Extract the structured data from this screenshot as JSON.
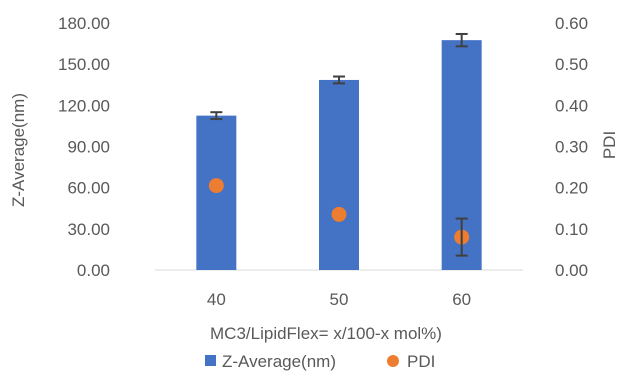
{
  "chart_data": {
    "type": "bar",
    "categories": [
      "40",
      "50",
      "60"
    ],
    "series": [
      {
        "name": "Z-Average(nm)",
        "type": "bar",
        "axis": "left",
        "values": [
          112.5,
          138.5,
          167.5
        ],
        "error": [
          2.5,
          2.5,
          4.5
        ],
        "color": "#4472C4"
      },
      {
        "name": "PDI",
        "type": "scatter",
        "axis": "right",
        "values": [
          0.205,
          0.135,
          0.08
        ],
        "error": [
          null,
          null,
          0.045
        ],
        "color": "#ED7D31"
      }
    ],
    "xlabel": "MC3/LipidFlex= x/100-x mol%)",
    "ylabel": "Z-Average(nm)",
    "y2label": "PDI",
    "ylim": [
      0,
      180
    ],
    "y2lim": [
      0,
      0.6
    ],
    "yticks": [
      "0.00",
      "30.00",
      "60.00",
      "90.00",
      "120.00",
      "150.00",
      "180.00"
    ],
    "y2ticks": [
      "0.00",
      "0.10",
      "0.20",
      "0.30",
      "0.40",
      "0.50",
      "0.60"
    ],
    "legend_position": "bottom",
    "grid": false,
    "error_bar_color": "#404040"
  }
}
